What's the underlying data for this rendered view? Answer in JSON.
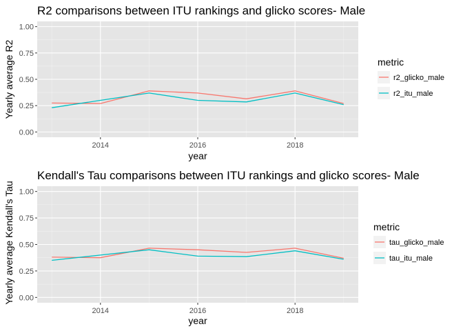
{
  "theme": {
    "panel_bg": "#E5E5E5",
    "grid_major": "#FFFFFF",
    "grid_minor": "#F2F2F2",
    "legend_key_bg": "#F2F2F2",
    "tick_text": "#4D4D4D"
  },
  "chart_data": [
    {
      "type": "line",
      "title": "R2 comparisons between ITU rankings and glicko scores- Male",
      "xlabel": "year",
      "ylabel": "Yearly average R2",
      "x": [
        2013,
        2014,
        2015,
        2016,
        2017,
        2018,
        2019
      ],
      "xlim": [
        2012.7,
        2019.3
      ],
      "ylim": [
        -0.05,
        1.05
      ],
      "x_ticks": [
        2014,
        2016,
        2018
      ],
      "x_tick_labels": [
        "2014",
        "2016",
        "2018"
      ],
      "y_ticks": [
        0,
        0.25,
        0.5,
        0.75,
        1
      ],
      "y_tick_labels": [
        "0.00",
        "0.25",
        "0.50",
        "0.75",
        "1.00"
      ],
      "grid": true,
      "legend": {
        "title": "metric",
        "position": "right"
      },
      "series": [
        {
          "name": "r2_glicko_male",
          "color": "#F8766D",
          "values": [
            0.275,
            0.27,
            0.39,
            0.37,
            0.315,
            0.39,
            0.27
          ]
        },
        {
          "name": "r2_itu_male",
          "color": "#00BFC4",
          "values": [
            0.23,
            0.3,
            0.37,
            0.3,
            0.285,
            0.37,
            0.26
          ]
        }
      ]
    },
    {
      "type": "line",
      "title": "Kendall's Tau comparisons between ITU rankings and glicko scores- Male",
      "xlabel": "year",
      "ylabel": "Yearly average Kendall's Tau",
      "x": [
        2013,
        2014,
        2015,
        2016,
        2017,
        2018,
        2019
      ],
      "xlim": [
        2012.7,
        2019.3
      ],
      "ylim": [
        -0.05,
        1.05
      ],
      "x_ticks": [
        2014,
        2016,
        2018
      ],
      "x_tick_labels": [
        "2014",
        "2016",
        "2018"
      ],
      "y_ticks": [
        0,
        0.25,
        0.5,
        0.75,
        1
      ],
      "y_tick_labels": [
        "0.00",
        "0.25",
        "0.50",
        "0.75",
        "1.00"
      ],
      "grid": true,
      "legend": {
        "title": "metric",
        "position": "right"
      },
      "series": [
        {
          "name": "tau_glicko_male",
          "color": "#F8766D",
          "values": [
            0.38,
            0.375,
            0.465,
            0.45,
            0.425,
            0.465,
            0.37
          ]
        },
        {
          "name": "tau_itu_male",
          "color": "#00BFC4",
          "values": [
            0.35,
            0.4,
            0.45,
            0.39,
            0.385,
            0.44,
            0.36
          ]
        }
      ]
    }
  ]
}
